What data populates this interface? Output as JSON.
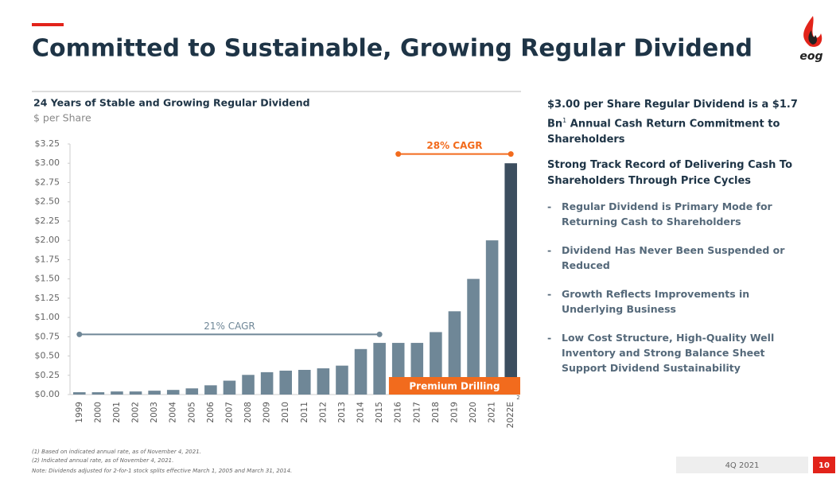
{
  "header": {
    "title": "Committed to Sustainable, Growing Regular Dividend",
    "logo": "eog"
  },
  "chart_data": {
    "type": "bar",
    "title": "24 Years of Stable and Growing Regular Dividend",
    "subtitle": "$ per Share",
    "categories": [
      "1999",
      "2000",
      "2001",
      "2002",
      "2003",
      "2004",
      "2005",
      "2006",
      "2007",
      "2008",
      "2009",
      "2010",
      "2011",
      "2012",
      "2013",
      "2014",
      "2015",
      "2016",
      "2017",
      "2018",
      "2019",
      "2020",
      "2021",
      "2022E"
    ],
    "category_note": {
      "category": "2022E",
      "note": "2"
    },
    "values": [
      0.03,
      0.03,
      0.04,
      0.04,
      0.05,
      0.06,
      0.08,
      0.12,
      0.18,
      0.255,
      0.29,
      0.31,
      0.32,
      0.34,
      0.375,
      0.59,
      0.67,
      0.67,
      0.67,
      0.81,
      1.08,
      1.5,
      2.0,
      3.0
    ],
    "colors": [
      "#6f8797",
      "#6f8797",
      "#6f8797",
      "#6f8797",
      "#6f8797",
      "#6f8797",
      "#6f8797",
      "#6f8797",
      "#6f8797",
      "#6f8797",
      "#6f8797",
      "#6f8797",
      "#6f8797",
      "#6f8797",
      "#6f8797",
      "#6f8797",
      "#6f8797",
      "#6f8797",
      "#6f8797",
      "#6f8797",
      "#6f8797",
      "#6f8797",
      "#6f8797",
      "#3c4e5f"
    ],
    "ylim": [
      0,
      3.25
    ],
    "yticks": [
      {
        "value": 0,
        "label": "$0.00"
      },
      {
        "value": 0.25,
        "label": "$0.25"
      },
      {
        "value": 0.5,
        "label": "$0.50"
      },
      {
        "value": 0.75,
        "label": "$0.75"
      },
      {
        "value": 1,
        "label": "$1.00"
      },
      {
        "value": 1.25,
        "label": "$1.25"
      },
      {
        "value": 1.5,
        "label": "$1.50"
      },
      {
        "value": 1.75,
        "label": "$1.75"
      },
      {
        "value": 2,
        "label": "$2.00"
      },
      {
        "value": 2.25,
        "label": "$2.25"
      },
      {
        "value": 2.5,
        "label": "$2.50"
      },
      {
        "value": 2.75,
        "label": "$2.75"
      },
      {
        "value": 3,
        "label": "$3.00"
      },
      {
        "value": 3.25,
        "label": "$3.25"
      }
    ],
    "annotations": [
      {
        "text": "21% CAGR",
        "from": "1999",
        "to": "2015",
        "color": "#6f8797"
      },
      {
        "text": "28% CAGR",
        "from": "2016",
        "to": "2022E",
        "color": "#f26b1d"
      }
    ],
    "band_label": {
      "text": "Premium Drilling",
      "from": "2016",
      "to": "2022E",
      "color": "#f26b1d"
    }
  },
  "right": {
    "lead": {
      "text": "$3.00 per Share Regular Dividend is a $1.7 Bn",
      "note": "1",
      "text2": "Annual Cash Return Commitment to Shareholders"
    },
    "heading": "Strong Track Record of Delivering Cash To Shareholders Through Price Cycles",
    "bullets": [
      "Regular Dividend is Primary Mode for Returning Cash to Shareholders",
      "Dividend Has Never Been Suspended or Reduced",
      "Growth Reflects Improvements in Underlying Business",
      "Low Cost Structure, High-Quality Well Inventory and Strong Balance Sheet Support Dividend Sustainability"
    ]
  },
  "footnotes": [
    "(1)   Based on indicated annual rate, as of November 4, 2021.",
    "(2)   Indicated annual rate, as of November 4, 2021.",
    "Note: Dividends adjusted for 2-for-1 stock splits effective March 1, 2005 and March 31, 2014."
  ],
  "footer": {
    "period": "4Q 2021",
    "page": "10"
  }
}
